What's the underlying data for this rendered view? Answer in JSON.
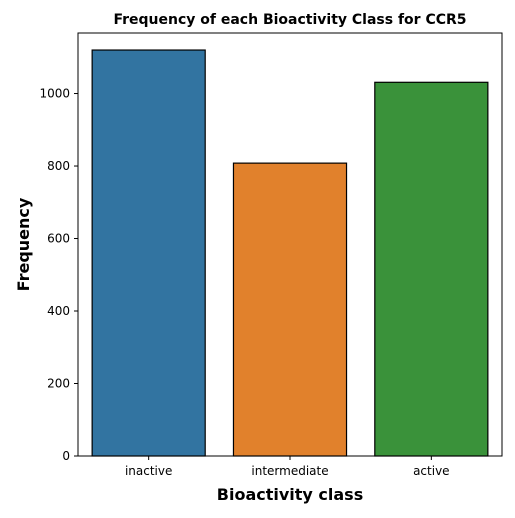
{
  "chart_data": {
    "type": "bar",
    "title": "Frequency of each Bioactivity Class for CCR5",
    "xlabel": "Bioactivity class",
    "ylabel": "Frequency",
    "categories": [
      "inactive",
      "intermediate",
      "active"
    ],
    "values": [
      1120,
      808,
      1031
    ],
    "colors": [
      "#3274a1",
      "#e1812c",
      "#3a923a"
    ],
    "edge_color": "#000000",
    "ylim": [
      0,
      1167
    ],
    "yticks": [
      0,
      200,
      400,
      600,
      800,
      1000
    ],
    "grid": false,
    "legend": "none"
  }
}
